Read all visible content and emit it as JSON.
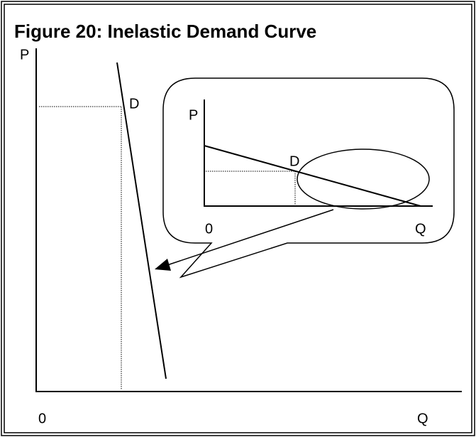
{
  "title": "Figure 20:  Inelastic Demand Curve",
  "main": {
    "y_label": "P",
    "x_label": "Q",
    "origin": "0",
    "curve_label": "D"
  },
  "inset": {
    "y_label": "P",
    "x_label": "Q",
    "origin": "0",
    "curve_label": "D"
  }
}
